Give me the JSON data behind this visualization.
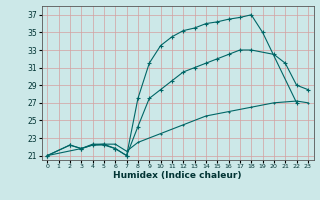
{
  "xlabel": "Humidex (Indice chaleur)",
  "bg_color": "#cce8e8",
  "grid_color": "#d4a0a0",
  "line_color": "#006666",
  "xlim": [
    -0.5,
    23.5
  ],
  "ylim": [
    20.5,
    38
  ],
  "yticks": [
    21,
    23,
    25,
    27,
    29,
    31,
    33,
    35,
    37
  ],
  "xticks": [
    0,
    1,
    2,
    3,
    4,
    5,
    6,
    7,
    8,
    9,
    10,
    11,
    12,
    13,
    14,
    15,
    16,
    17,
    18,
    19,
    20,
    21,
    22,
    23
  ],
  "line1_x": [
    0,
    2,
    3,
    4,
    5,
    6,
    7,
    8,
    9,
    10,
    11,
    12,
    13,
    14,
    15,
    16,
    17,
    18,
    19,
    22
  ],
  "line1_y": [
    21,
    22.2,
    21.8,
    22.2,
    22.2,
    21.8,
    21,
    27.5,
    31.5,
    33.5,
    34.5,
    35.2,
    35.5,
    36.0,
    36.2,
    36.5,
    36.7,
    37.0,
    35.0,
    27.0
  ],
  "line2_x": [
    0,
    2,
    3,
    4,
    5,
    6,
    7,
    8,
    9,
    10,
    11,
    12,
    13,
    14,
    15,
    16,
    17,
    18,
    20,
    21,
    22,
    23
  ],
  "line2_y": [
    21,
    22.2,
    21.8,
    22.3,
    22.3,
    21.8,
    21,
    24.3,
    27.5,
    28.5,
    29.5,
    30.5,
    31.0,
    31.5,
    32.0,
    32.5,
    33.0,
    33.0,
    32.5,
    31.5,
    29.0,
    28.5
  ],
  "line3_x": [
    0,
    3,
    4,
    5,
    6,
    7,
    8,
    10,
    12,
    14,
    16,
    18,
    20,
    22,
    23
  ],
  "line3_y": [
    21,
    21.8,
    22.2,
    22.3,
    22.3,
    21.5,
    22.5,
    23.5,
    24.5,
    25.5,
    26.0,
    26.5,
    27.0,
    27.2,
    27.0
  ]
}
